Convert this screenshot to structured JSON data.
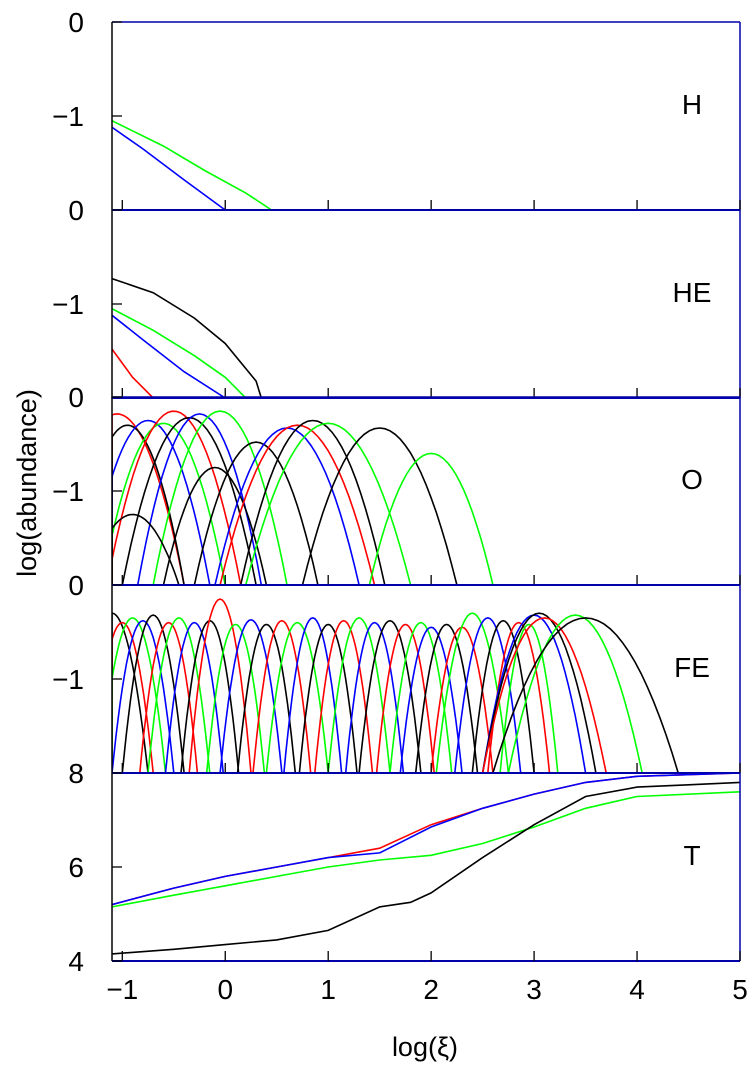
{
  "chart_data": {
    "type": "line",
    "xlabel": "log(ξ)",
    "ylabel": "log(abundance)",
    "xlim": [
      -1.1,
      5
    ],
    "x_ticks": [
      "−1",
      "0",
      "1",
      "2",
      "3",
      "4",
      "5"
    ],
    "x_tick_values": [
      -1,
      0,
      1,
      2,
      3,
      4,
      5
    ],
    "colors": {
      "black": "#000000",
      "red": "#ff0000",
      "green": "#00ff00",
      "blue": "#0000ff",
      "frame": "#0000aa"
    },
    "panels": [
      {
        "label": "H",
        "ylim": [
          -2,
          0
        ],
        "y_ticks": [
          {
            "value": 0,
            "label": "0"
          },
          {
            "value": -1,
            "label": "−1"
          }
        ],
        "series": [
          {
            "color": "green",
            "points": [
              [
                -1.1,
                -1.05
              ],
              [
                -0.6,
                -1.32
              ],
              [
                -0.2,
                -1.58
              ],
              [
                0.2,
                -1.82
              ],
              [
                0.45,
                -2.0
              ],
              [
                5,
                -2.0
              ]
            ]
          },
          {
            "color": "blue",
            "points": [
              [
                -1.1,
                -1.12
              ],
              [
                -0.8,
                -1.35
              ],
              [
                -0.4,
                -1.68
              ],
              [
                0.0,
                -2.0
              ],
              [
                5,
                -2.0
              ]
            ]
          },
          {
            "color": "red",
            "points": [
              [
                -1.1,
                -2.0
              ],
              [
                5,
                -2.0
              ]
            ]
          }
        ]
      },
      {
        "label": "HE",
        "ylim": [
          -2,
          0
        ],
        "y_ticks": [
          {
            "value": 0,
            "label": "0"
          },
          {
            "value": -1,
            "label": "−1"
          }
        ],
        "series": [
          {
            "color": "black",
            "points": [
              [
                -1.1,
                -0.73
              ],
              [
                -0.7,
                -0.88
              ],
              [
                -0.3,
                -1.15
              ],
              [
                0.0,
                -1.42
              ],
              [
                0.3,
                -1.82
              ],
              [
                0.35,
                -2.0
              ],
              [
                5,
                -2.0
              ]
            ]
          },
          {
            "color": "green",
            "points": [
              [
                -1.1,
                -1.05
              ],
              [
                -0.7,
                -1.28
              ],
              [
                -0.3,
                -1.55
              ],
              [
                0.0,
                -1.78
              ],
              [
                0.2,
                -2.0
              ],
              [
                5,
                -2.0
              ]
            ]
          },
          {
            "color": "blue",
            "points": [
              [
                -1.1,
                -1.12
              ],
              [
                -0.8,
                -1.38
              ],
              [
                -0.4,
                -1.72
              ],
              [
                0.0,
                -2.0
              ],
              [
                5,
                -2.0
              ]
            ]
          },
          {
            "color": "red",
            "points": [
              [
                -1.1,
                -1.48
              ],
              [
                -0.9,
                -1.78
              ],
              [
                -0.7,
                -2.0
              ],
              [
                5,
                -2.0
              ]
            ]
          }
        ]
      },
      {
        "label": "O",
        "ylim": [
          -2,
          0
        ],
        "y_ticks": [
          {
            "value": 0,
            "label": "0"
          },
          {
            "value": -1,
            "label": "−1"
          }
        ],
        "peaks": [
          {
            "color": "red",
            "center": -1.05,
            "peak": -0.18,
            "width": 0.65
          },
          {
            "color": "black",
            "center": -0.95,
            "peak": -0.3,
            "width": 0.55
          },
          {
            "color": "blue",
            "center": -0.75,
            "peak": -0.25,
            "width": 0.6
          },
          {
            "color": "green",
            "center": -0.6,
            "peak": -0.28,
            "width": 0.6
          },
          {
            "color": "red",
            "center": -0.5,
            "peak": -0.15,
            "width": 0.65
          },
          {
            "color": "black",
            "center": -0.35,
            "peak": -0.22,
            "width": 0.65
          },
          {
            "color": "blue",
            "center": -0.25,
            "peak": -0.18,
            "width": 0.6
          },
          {
            "color": "green",
            "center": -0.05,
            "peak": -0.15,
            "width": 0.65
          },
          {
            "color": "black",
            "center": -0.9,
            "peak": -1.25,
            "width": 0.45
          },
          {
            "color": "black",
            "center": -0.1,
            "peak": -0.75,
            "width": 0.5
          },
          {
            "color": "black",
            "center": 0.3,
            "peak": -0.48,
            "width": 0.6
          },
          {
            "color": "blue",
            "center": 0.6,
            "peak": -0.33,
            "width": 0.7
          },
          {
            "color": "red",
            "center": 0.7,
            "peak": -0.3,
            "width": 0.75
          },
          {
            "color": "black",
            "center": 0.85,
            "peak": -0.25,
            "width": 0.7
          },
          {
            "color": "green",
            "center": 1.0,
            "peak": -0.28,
            "width": 0.8
          },
          {
            "color": "black",
            "center": 1.5,
            "peak": -0.33,
            "width": 0.75
          },
          {
            "color": "green",
            "center": 2.0,
            "peak": -0.6,
            "width": 0.6
          }
        ]
      },
      {
        "label": "FE",
        "ylim": [
          -2,
          0
        ],
        "y_ticks": [
          {
            "value": 0,
            "label": "0"
          },
          {
            "value": -1,
            "label": "−1"
          }
        ],
        "peaks": [
          {
            "color": "black",
            "center": -1.1,
            "peak": -0.3,
            "width": 0.35
          },
          {
            "color": "red",
            "center": -1.0,
            "peak": -0.4,
            "width": 0.3
          },
          {
            "color": "green",
            "center": -0.9,
            "peak": -0.35,
            "width": 0.32
          },
          {
            "color": "blue",
            "center": -0.8,
            "peak": -0.38,
            "width": 0.3
          },
          {
            "color": "black",
            "center": -0.7,
            "peak": -0.32,
            "width": 0.3
          },
          {
            "color": "red",
            "center": -0.55,
            "peak": -0.4,
            "width": 0.28
          },
          {
            "color": "green",
            "center": -0.45,
            "peak": -0.35,
            "width": 0.3
          },
          {
            "color": "blue",
            "center": -0.3,
            "peak": -0.4,
            "width": 0.28
          },
          {
            "color": "black",
            "center": -0.15,
            "peak": -0.38,
            "width": 0.28
          },
          {
            "color": "red",
            "center": -0.05,
            "peak": -0.15,
            "width": 0.3
          },
          {
            "color": "green",
            "center": 0.1,
            "peak": -0.42,
            "width": 0.28
          },
          {
            "color": "blue",
            "center": 0.25,
            "peak": -0.37,
            "width": 0.3
          },
          {
            "color": "black",
            "center": 0.4,
            "peak": -0.42,
            "width": 0.28
          },
          {
            "color": "red",
            "center": 0.55,
            "peak": -0.38,
            "width": 0.28
          },
          {
            "color": "green",
            "center": 0.7,
            "peak": -0.4,
            "width": 0.3
          },
          {
            "color": "blue",
            "center": 0.85,
            "peak": -0.35,
            "width": 0.28
          },
          {
            "color": "black",
            "center": 1.0,
            "peak": -0.42,
            "width": 0.28
          },
          {
            "color": "red",
            "center": 1.15,
            "peak": -0.38,
            "width": 0.28
          },
          {
            "color": "green",
            "center": 1.3,
            "peak": -0.35,
            "width": 0.3
          },
          {
            "color": "blue",
            "center": 1.45,
            "peak": -0.4,
            "width": 0.28
          },
          {
            "color": "black",
            "center": 1.6,
            "peak": -0.38,
            "width": 0.3
          },
          {
            "color": "red",
            "center": 1.75,
            "peak": -0.42,
            "width": 0.28
          },
          {
            "color": "green",
            "center": 1.9,
            "peak": -0.4,
            "width": 0.3
          },
          {
            "color": "blue",
            "center": 2.0,
            "peak": -0.45,
            "width": 0.3
          },
          {
            "color": "black",
            "center": 2.15,
            "peak": -0.42,
            "width": 0.3
          },
          {
            "color": "red",
            "center": 2.3,
            "peak": -0.45,
            "width": 0.3
          },
          {
            "color": "green",
            "center": 2.4,
            "peak": -0.3,
            "width": 0.35
          },
          {
            "color": "blue",
            "center": 2.55,
            "peak": -0.35,
            "width": 0.32
          },
          {
            "color": "black",
            "center": 2.7,
            "peak": -0.38,
            "width": 0.3
          },
          {
            "color": "red",
            "center": 2.85,
            "peak": -0.4,
            "width": 0.3
          },
          {
            "color": "green",
            "center": 2.95,
            "peak": -0.42,
            "width": 0.28
          },
          {
            "color": "blue",
            "center": 3.0,
            "peak": -0.32,
            "width": 0.5
          },
          {
            "color": "black",
            "center": 3.05,
            "peak": -0.3,
            "width": 0.55
          },
          {
            "color": "red",
            "center": 3.1,
            "peak": -0.35,
            "width": 0.6
          },
          {
            "color": "green",
            "center": 3.4,
            "peak": -0.32,
            "width": 0.65
          },
          {
            "color": "black",
            "center": 3.5,
            "peak": -0.35,
            "width": 0.9
          }
        ]
      },
      {
        "label": "T",
        "ylim": [
          4,
          8
        ],
        "y_ticks": [
          {
            "value": 8,
            "label": "8"
          },
          {
            "value": 6,
            "label": "6"
          },
          {
            "value": 4,
            "label": "4"
          }
        ],
        "series": [
          {
            "color": "red",
            "points": [
              [
                -1.1,
                5.2
              ],
              [
                -0.5,
                5.55
              ],
              [
                0,
                5.8
              ],
              [
                0.5,
                6.0
              ],
              [
                1,
                6.2
              ],
              [
                1.5,
                6.4
              ],
              [
                2,
                6.9
              ],
              [
                2.5,
                7.25
              ],
              [
                3,
                7.55
              ],
              [
                3.5,
                7.8
              ],
              [
                4,
                7.93
              ],
              [
                5,
                8.0
              ]
            ]
          },
          {
            "color": "blue",
            "points": [
              [
                -1.1,
                5.2
              ],
              [
                -0.5,
                5.55
              ],
              [
                0,
                5.8
              ],
              [
                0.5,
                6.0
              ],
              [
                1,
                6.2
              ],
              [
                1.5,
                6.3
              ],
              [
                2,
                6.85
              ],
              [
                2.5,
                7.25
              ],
              [
                3,
                7.55
              ],
              [
                3.5,
                7.8
              ],
              [
                4,
                7.93
              ],
              [
                5,
                8.0
              ]
            ]
          },
          {
            "color": "green",
            "points": [
              [
                -1.1,
                5.15
              ],
              [
                -0.5,
                5.4
              ],
              [
                0,
                5.6
              ],
              [
                0.5,
                5.8
              ],
              [
                1,
                6.0
              ],
              [
                1.5,
                6.15
              ],
              [
                2,
                6.25
              ],
              [
                2.5,
                6.5
              ],
              [
                3,
                6.85
              ],
              [
                3.5,
                7.25
              ],
              [
                4,
                7.5
              ],
              [
                5,
                7.6
              ]
            ]
          },
          {
            "color": "black",
            "points": [
              [
                -1.1,
                4.15
              ],
              [
                -0.5,
                4.25
              ],
              [
                0,
                4.35
              ],
              [
                0.5,
                4.45
              ],
              [
                1,
                4.65
              ],
              [
                1.5,
                5.15
              ],
              [
                1.8,
                5.25
              ],
              [
                2,
                5.45
              ],
              [
                2.5,
                6.2
              ],
              [
                3,
                6.9
              ],
              [
                3.5,
                7.5
              ],
              [
                4,
                7.7
              ],
              [
                4.5,
                7.75
              ],
              [
                5,
                7.8
              ]
            ]
          }
        ]
      }
    ]
  }
}
